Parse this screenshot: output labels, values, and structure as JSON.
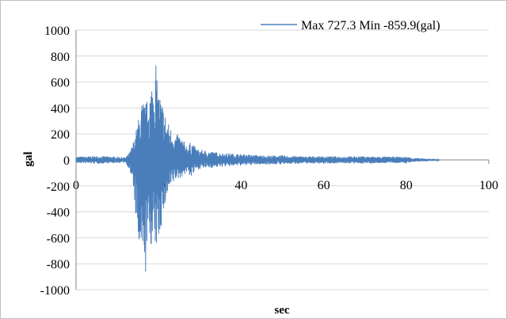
{
  "chart_data": {
    "type": "line",
    "title": "",
    "xlabel": "sec",
    "ylabel": "gal",
    "xlim": [
      0,
      100
    ],
    "ylim": [
      -1000,
      1000
    ],
    "x_ticks": [
      "0",
      "20",
      "40",
      "60",
      "80",
      "100"
    ],
    "y_ticks": [
      "1000",
      "800",
      "600",
      "400",
      "200",
      "0",
      "-200",
      "-400",
      "-600",
      "-800",
      "-1000"
    ],
    "x_tick_values": [
      0,
      20,
      40,
      60,
      80,
      100
    ],
    "y_tick_values": [
      1000,
      800,
      600,
      400,
      200,
      0,
      -200,
      -400,
      -600,
      -800,
      -1000
    ],
    "grid": "horizontal",
    "legend": "top-right",
    "series": [
      {
        "name": "Max 727.3 Min -859.9(gal)",
        "color": "#4a7ebb",
        "max": 727.3,
        "min": -859.9,
        "envelope": [
          [
            0,
            25
          ],
          [
            5,
            30
          ],
          [
            10,
            25
          ],
          [
            12,
            20
          ],
          [
            13,
            60
          ],
          [
            14,
            150
          ],
          [
            15,
            300
          ],
          [
            16,
            460
          ],
          [
            17,
            440
          ],
          [
            18,
            560
          ],
          [
            19,
            727.3
          ],
          [
            20,
            545
          ],
          [
            21,
            440
          ],
          [
            22,
            310
          ],
          [
            23,
            250
          ],
          [
            24,
            190
          ],
          [
            25,
            200
          ],
          [
            26,
            150
          ],
          [
            27,
            110
          ],
          [
            28,
            145
          ],
          [
            29,
            90
          ],
          [
            30,
            80
          ],
          [
            35,
            55
          ],
          [
            40,
            45
          ],
          [
            45,
            35
          ],
          [
            50,
            35
          ],
          [
            55,
            28
          ],
          [
            60,
            28
          ],
          [
            65,
            28
          ],
          [
            70,
            28
          ],
          [
            75,
            25
          ],
          [
            80,
            25
          ],
          [
            82,
            15
          ],
          [
            85,
            10
          ],
          [
            87,
            8
          ],
          [
            88,
            2
          ]
        ],
        "envelope_min": [
          [
            0,
            -25
          ],
          [
            5,
            -30
          ],
          [
            10,
            -25
          ],
          [
            12,
            -20
          ],
          [
            13,
            -80
          ],
          [
            14,
            -250
          ],
          [
            15,
            -690
          ],
          [
            16,
            -859.9
          ],
          [
            17,
            -700
          ],
          [
            18,
            -650
          ],
          [
            19,
            -730
          ],
          [
            20,
            -640
          ],
          [
            21,
            -460
          ],
          [
            22,
            -300
          ],
          [
            23,
            -230
          ],
          [
            24,
            -160
          ],
          [
            25,
            -150
          ],
          [
            26,
            -120
          ],
          [
            27,
            -100
          ],
          [
            28,
            -140
          ],
          [
            29,
            -80
          ],
          [
            30,
            -70
          ],
          [
            35,
            -55
          ],
          [
            40,
            -45
          ],
          [
            45,
            -35
          ],
          [
            50,
            -35
          ],
          [
            55,
            -28
          ],
          [
            60,
            -28
          ],
          [
            65,
            -28
          ],
          [
            70,
            -28
          ],
          [
            75,
            -25
          ],
          [
            80,
            -25
          ],
          [
            82,
            -15
          ],
          [
            85,
            -10
          ],
          [
            87,
            -8
          ],
          [
            88,
            -2
          ]
        ]
      }
    ]
  }
}
